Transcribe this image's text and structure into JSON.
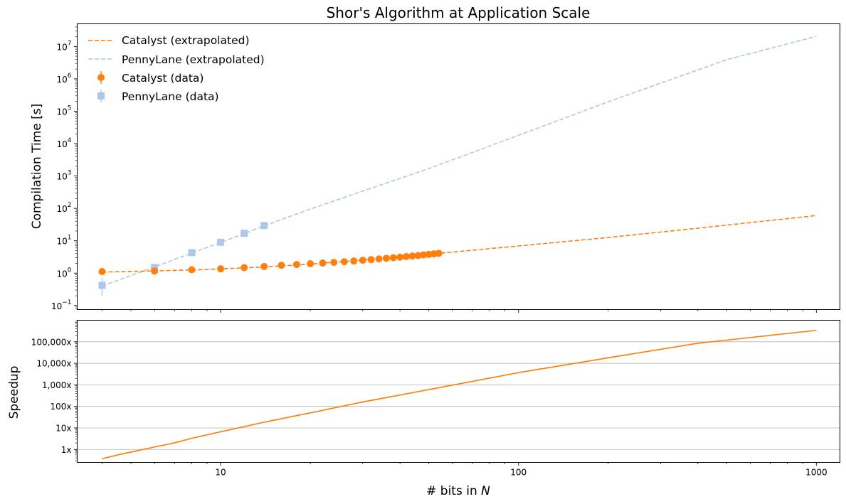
{
  "chart_data": [
    {
      "type": "line",
      "title": "Shor's Algorithm at Application Scale",
      "ylabel": "Compilation Time [s]",
      "xscale": "log",
      "yscale": "log",
      "xlim": [
        3.3,
        1200
      ],
      "ylim": [
        0.075,
        50000000
      ],
      "ytick_labels": [
        "10",
        "10",
        "10",
        "10",
        "10",
        "10",
        "10",
        "10",
        "10"
      ],
      "ytick_exponents": [
        "−1",
        "0",
        "1",
        "2",
        "3",
        "4",
        "5",
        "6",
        "7"
      ],
      "legend": {
        "placement": "top-left",
        "entries": [
          "Catalyst (extrapolated)",
          "PennyLane (extrapolated)",
          "Catalyst (data)",
          "PennyLane (data)"
        ]
      },
      "colors": {
        "catalyst": "#ff7f0e",
        "pennylane": "#aec7e8"
      },
      "series": [
        {
          "name": "Catalyst (extrapolated)",
          "style": "dashed",
          "x": [
            4,
            6,
            8,
            10,
            14,
            20,
            30,
            40,
            55,
            100,
            200,
            400,
            1000
          ],
          "y": [
            1.08,
            1.17,
            1.26,
            1.35,
            1.56,
            1.9,
            2.55,
            3.2,
            4.15,
            6.9,
            12.6,
            24.5,
            60
          ]
        },
        {
          "name": "PennyLane (extrapolated)",
          "style": "dashed",
          "x": [
            4,
            6,
            8,
            10,
            12,
            14,
            20,
            50,
            100,
            200,
            500,
            1000
          ],
          "y": [
            0.4,
            1.55,
            4.2,
            8.9,
            16.5,
            29,
            95,
            1700,
            18000,
            195000,
            3900000,
            20500000
          ]
        },
        {
          "name": "Catalyst (data)",
          "marker": "circle",
          "x": [
            4,
            6,
            8,
            10,
            12,
            14,
            16,
            18,
            20,
            22,
            24,
            26,
            28,
            30,
            32,
            34,
            36,
            38,
            40,
            42,
            44,
            46,
            48,
            50,
            52,
            54
          ],
          "y": [
            1.12,
            1.16,
            1.27,
            1.36,
            1.48,
            1.6,
            1.74,
            1.85,
            1.95,
            2.05,
            2.15,
            2.25,
            2.37,
            2.5,
            2.62,
            2.75,
            2.88,
            3.0,
            3.12,
            3.25,
            3.38,
            3.5,
            3.65,
            3.8,
            3.95,
            4.1
          ]
        },
        {
          "name": "PennyLane (data)",
          "marker": "square",
          "x": [
            4,
            6,
            8,
            10,
            12,
            14
          ],
          "y": [
            0.42,
            1.5,
            4.3,
            9.0,
            17.0,
            29.5
          ],
          "yerr_low": [
            0.2,
            1.4,
            4.0,
            8.6,
            16.3,
            28.5
          ],
          "yerr_high": [
            0.7,
            1.65,
            4.6,
            9.4,
            17.6,
            30.5
          ]
        }
      ]
    },
    {
      "type": "line",
      "xlabel": "# bits in ",
      "xlabel_var": "N",
      "ylabel": "Speedup",
      "xscale": "log",
      "yscale": "log",
      "xlim": [
        3.3,
        1200
      ],
      "ylim": [
        0.25,
        1000000
      ],
      "grid": "y",
      "xtick_labels": [
        "10",
        "100",
        "1000"
      ],
      "ytick_labels": [
        "1x",
        "10x",
        "100x",
        "1,000x",
        "10,000x",
        "100,000x"
      ],
      "series": [
        {
          "name": "",
          "x": [
            4,
            4.5,
            5,
            6,
            7,
            8,
            10,
            14,
            20,
            30,
            50,
            100,
            200,
            400,
            1000
          ],
          "y": [
            0.37,
            0.55,
            0.75,
            1.3,
            2.0,
            3.3,
            6.6,
            18.5,
            50,
            160,
            600,
            3700,
            18000,
            85000,
            340000
          ]
        }
      ]
    }
  ]
}
